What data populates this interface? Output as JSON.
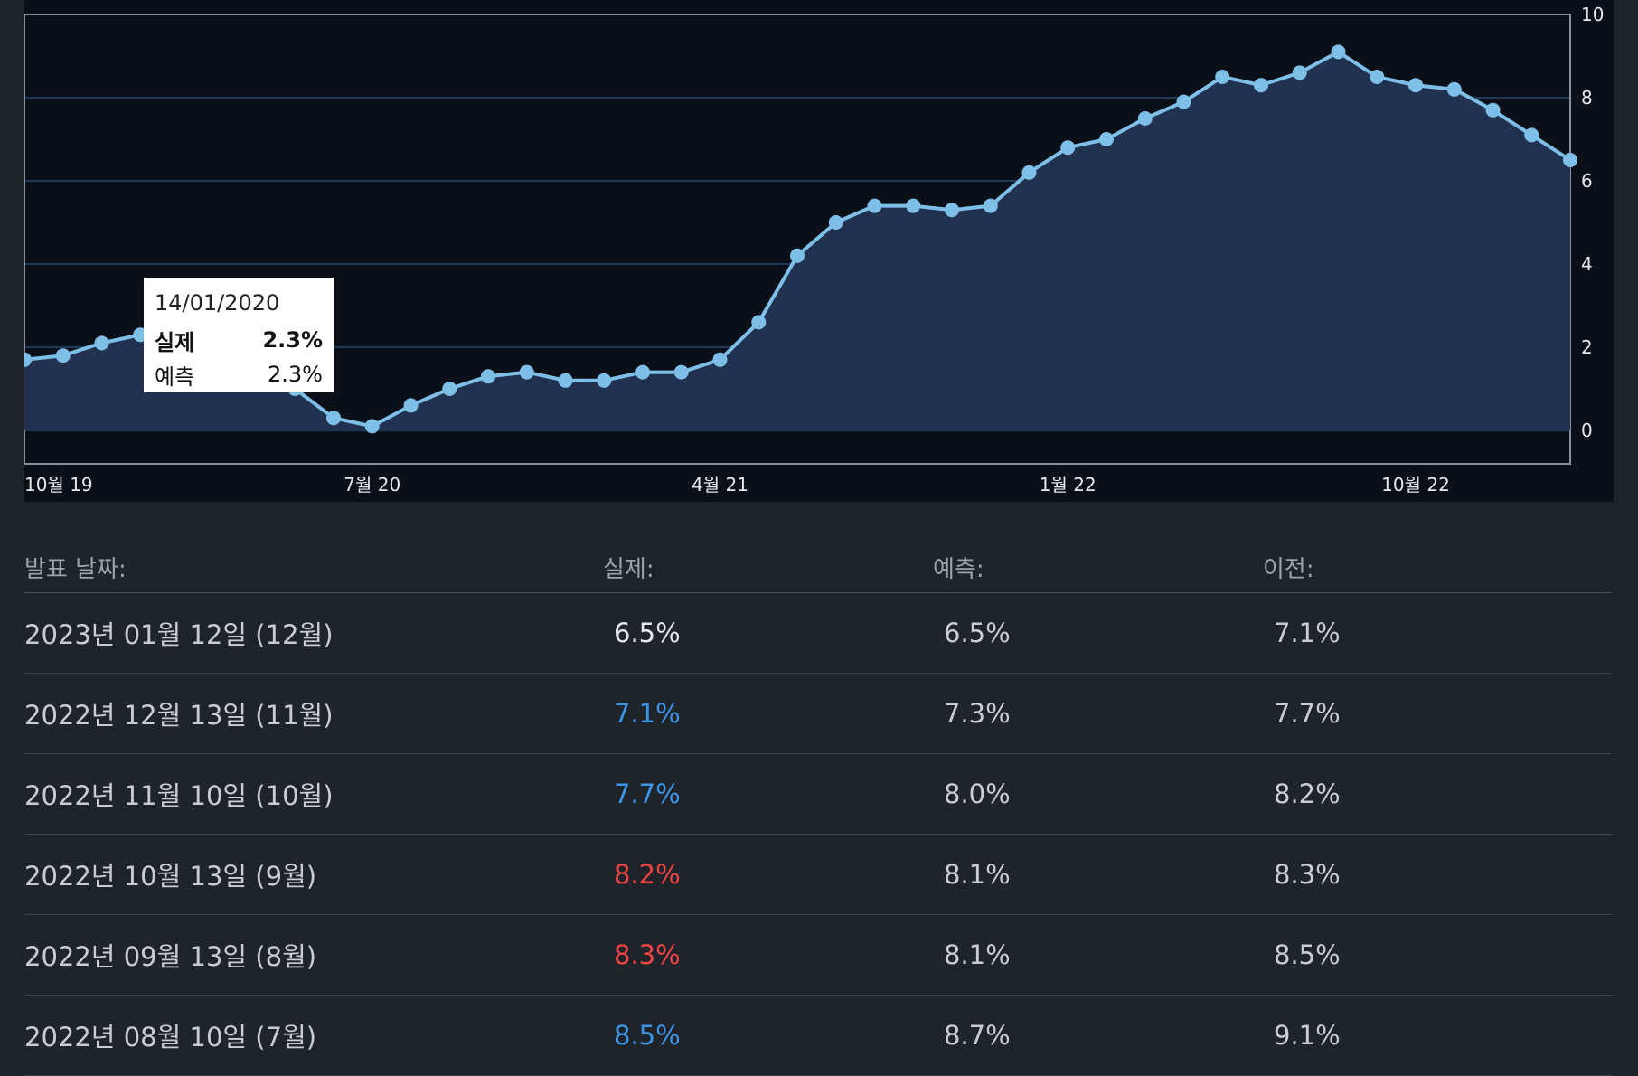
{
  "chart_data": {
    "type": "area",
    "x_tick_labels": [
      "10월 19",
      "7월 20",
      "4월 21",
      "1월 22",
      "10월 22"
    ],
    "y_tick_labels": [
      "0",
      "2",
      "4",
      "6",
      "8",
      "10"
    ],
    "ylim": [
      0,
      10
    ],
    "grid": true,
    "y_axis_position": "right",
    "series": [
      {
        "values": [
          1.7,
          1.8,
          2.1,
          2.3,
          2.5,
          2.3,
          1.5,
          1.0,
          0.3,
          0.1,
          0.6,
          1.0,
          1.3,
          1.4,
          1.2,
          1.2,
          1.4,
          1.4,
          1.7,
          2.6,
          4.2,
          5.0,
          5.4,
          5.4,
          5.3,
          5.4,
          6.2,
          6.8,
          7.0,
          7.5,
          7.9,
          8.5,
          8.3,
          8.6,
          9.1,
          8.5,
          8.3,
          8.2,
          7.7,
          7.1,
          6.5
        ]
      }
    ],
    "tooltip": {
      "date": "14/01/2020",
      "actual_label": "실제",
      "actual_value": "2.3%",
      "forecast_label": "예측",
      "forecast_value": "2.3%"
    },
    "colors": {
      "line": "#7ebfe8",
      "fill": "#213251",
      "grid": "#1d3a5c",
      "background": "#0b0f17"
    }
  },
  "table": {
    "headers": {
      "date": "발표 날짜:",
      "actual": "실제:",
      "forecast": "예측:",
      "previous": "이전:"
    },
    "rows": [
      {
        "date": "2023년 01월 12일 (12월)",
        "actual": "6.5%",
        "forecast": "6.5%",
        "previous": "7.1%",
        "status": "neutral"
      },
      {
        "date": "2022년 12월 13일 (11월)",
        "actual": "7.1%",
        "forecast": "7.3%",
        "previous": "7.7%",
        "status": "up"
      },
      {
        "date": "2022년 11월 10일 (10월)",
        "actual": "7.7%",
        "forecast": "8.0%",
        "previous": "8.2%",
        "status": "up"
      },
      {
        "date": "2022년 10월 13일 (9월)",
        "actual": "8.2%",
        "forecast": "8.1%",
        "previous": "8.3%",
        "status": "down"
      },
      {
        "date": "2022년 09월 13일 (8월)",
        "actual": "8.3%",
        "forecast": "8.1%",
        "previous": "8.5%",
        "status": "down"
      },
      {
        "date": "2022년 08월 10일 (7월)",
        "actual": "8.5%",
        "forecast": "8.7%",
        "previous": "9.1%",
        "status": "up"
      }
    ],
    "status_colors": {
      "neutral": "#e4e6ea",
      "up": "#3d95e8",
      "down": "#ef4444"
    }
  }
}
